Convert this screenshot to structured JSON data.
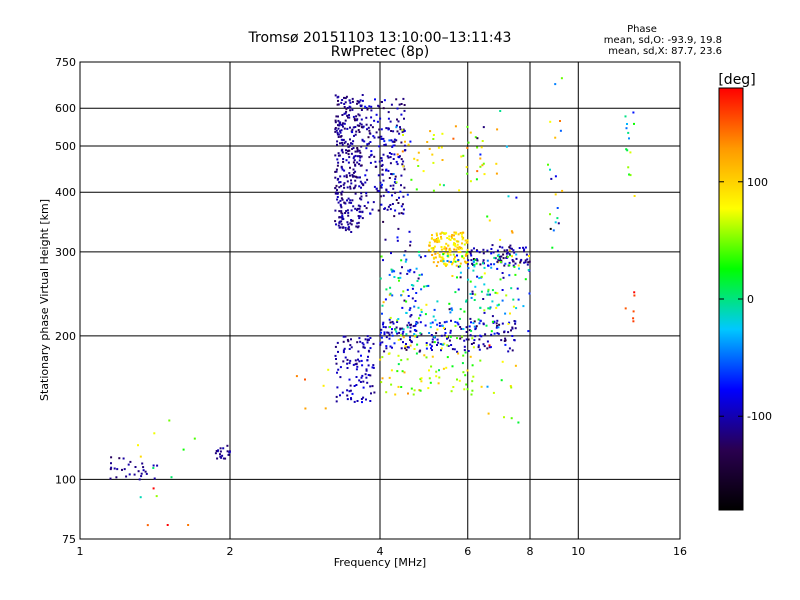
{
  "chart_data": {
    "type": "scatter",
    "title": "Tromsø 20151103 13:10:00–13:11:43",
    "subtitle": "RwPretec (8p)",
    "xlabel": "Frequency [MHz]",
    "ylabel": "Stationary phase Virtual Height [km]",
    "x_scale": "log",
    "y_scale": "log",
    "xlim": [
      1,
      16
    ],
    "ylim": [
      75,
      750
    ],
    "x_ticks": [
      1,
      2,
      4,
      6,
      8,
      10,
      16
    ],
    "x_tick_labels": [
      "1",
      "2",
      "4",
      "6",
      "8",
      "10",
      "16"
    ],
    "y_ticks": [
      75,
      100,
      200,
      300,
      400,
      500,
      600,
      750
    ],
    "y_tick_labels": [
      "75",
      "100",
      "200",
      "300",
      "400",
      "500",
      "600",
      "750"
    ],
    "grid": true,
    "stats": {
      "heading": "Phase",
      "line_o": "mean, sd,O: -93.9, 19.8",
      "line_x": "mean, sd,X:  87.7, 23.6"
    },
    "colorbar": {
      "label": "[deg]",
      "range": [
        -180,
        180
      ],
      "ticks": [
        100,
        0,
        -100
      ],
      "tick_labels": [
        "100",
        "0",
        "-100"
      ],
      "colormap": [
        "#000000",
        "#2a0050",
        "#0000ff",
        "#00c8ff",
        "#00ff00",
        "#ffff00",
        "#ff9900",
        "#ff0000"
      ]
    },
    "clusters": [
      {
        "fmin": 3.25,
        "fmax": 3.7,
        "hmin": 330,
        "hmax": 640,
        "n": 320,
        "pmean": -110,
        "psd": 12
      },
      {
        "fmin": 3.7,
        "fmax": 4.5,
        "hmin": 360,
        "hmax": 630,
        "n": 180,
        "pmean": -105,
        "psd": 20
      },
      {
        "fmin": 4.0,
        "fmax": 4.7,
        "hmin": 200,
        "hmax": 560,
        "n": 60,
        "pmean": -95,
        "psd": 30
      },
      {
        "fmin": 3.25,
        "fmax": 3.9,
        "hmin": 145,
        "hmax": 200,
        "n": 110,
        "pmean": -100,
        "psd": 15
      },
      {
        "fmin": 4.0,
        "fmax": 7.5,
        "hmin": 185,
        "hmax": 215,
        "n": 170,
        "pmean": -100,
        "psd": 25
      },
      {
        "fmin": 5.0,
        "fmax": 6.0,
        "hmin": 280,
        "hmax": 330,
        "n": 150,
        "pmean": 95,
        "psd": 20
      },
      {
        "fmin": 4.3,
        "fmax": 6.5,
        "hmin": 400,
        "hmax": 560,
        "n": 50,
        "pmean": 80,
        "psd": 45
      },
      {
        "fmin": 6.0,
        "fmax": 8.0,
        "hmin": 280,
        "hmax": 310,
        "n": 80,
        "pmean": -110,
        "psd": 20
      },
      {
        "fmin": 4.0,
        "fmax": 8.0,
        "hmin": 200,
        "hmax": 300,
        "n": 220,
        "pmean": -20,
        "psd": 80
      },
      {
        "fmin": 4.0,
        "fmax": 6.5,
        "hmin": 150,
        "hmax": 200,
        "n": 90,
        "pmean": 70,
        "psd": 50
      },
      {
        "fmin": 1.15,
        "fmax": 1.45,
        "hmin": 100,
        "hmax": 112,
        "n": 30,
        "pmean": -110,
        "psd": 10
      },
      {
        "fmin": 1.85,
        "fmax": 2.0,
        "hmin": 110,
        "hmax": 118,
        "n": 20,
        "pmean": -110,
        "psd": 10
      },
      {
        "fmin": 1.3,
        "fmax": 1.7,
        "hmin": 80,
        "hmax": 135,
        "n": 14,
        "pmean": 60,
        "psd": 90
      },
      {
        "fmin": 8.6,
        "fmax": 9.3,
        "hmin": 300,
        "hmax": 700,
        "n": 20,
        "pmean": 20,
        "psd": 120
      },
      {
        "fmin": 12.4,
        "fmax": 13.0,
        "hmin": 380,
        "hmax": 600,
        "n": 14,
        "pmean": 40,
        "psd": 110
      },
      {
        "fmin": 12.4,
        "fmax": 13.0,
        "hmin": 210,
        "hmax": 260,
        "n": 6,
        "pmean": 160,
        "psd": 15
      },
      {
        "fmin": 6.2,
        "fmax": 7.6,
        "hmin": 130,
        "hmax": 600,
        "n": 40,
        "pmean": 30,
        "psd": 110
      },
      {
        "fmin": 2.7,
        "fmax": 3.2,
        "hmin": 130,
        "hmax": 170,
        "n": 6,
        "pmean": 100,
        "psd": 60
      }
    ]
  }
}
